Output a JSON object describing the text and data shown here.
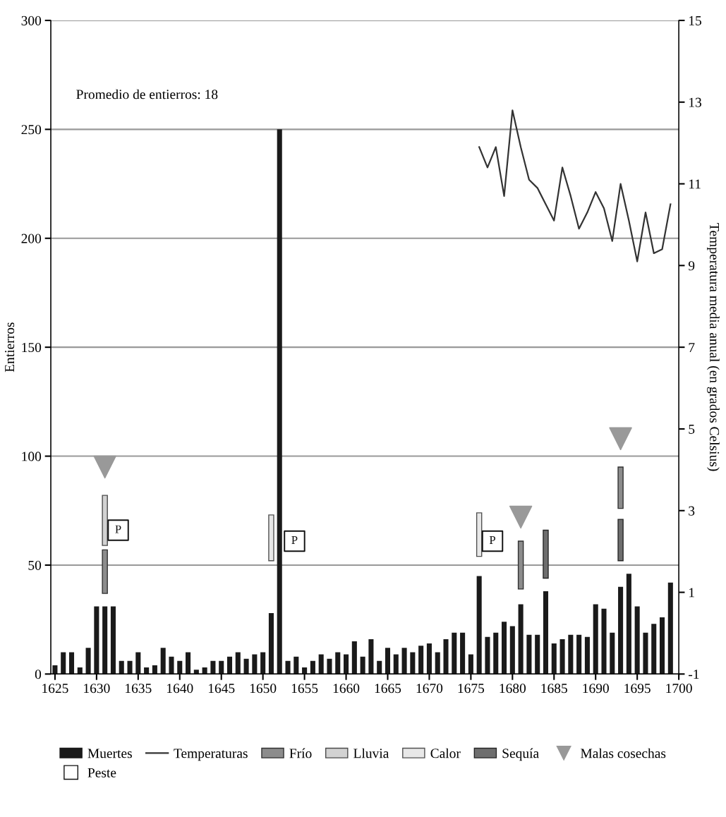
{
  "chart_data": {
    "type": "bar",
    "xlabel": null,
    "ylabel": "Entierros",
    "y2label": "Temperatura media anual (en grados Celsius)",
    "x": [
      1625,
      1626,
      1627,
      1628,
      1629,
      1630,
      1631,
      1632,
      1633,
      1634,
      1635,
      1636,
      1637,
      1638,
      1639,
      1640,
      1641,
      1642,
      1643,
      1644,
      1645,
      1646,
      1647,
      1648,
      1649,
      1650,
      1651,
      1652,
      1653,
      1654,
      1655,
      1656,
      1657,
      1658,
      1659,
      1660,
      1661,
      1662,
      1663,
      1664,
      1665,
      1666,
      1667,
      1668,
      1669,
      1670,
      1671,
      1672,
      1673,
      1674,
      1675,
      1676,
      1677,
      1678,
      1679,
      1680,
      1681,
      1682,
      1683,
      1684,
      1685,
      1686,
      1687,
      1688,
      1689,
      1690,
      1691,
      1692,
      1693,
      1694,
      1695,
      1696,
      1697,
      1698,
      1699
    ],
    "series": [
      {
        "name": "Muertes",
        "color": "#1a1a1a",
        "values": [
          4,
          10,
          10,
          3,
          12,
          31,
          31,
          31,
          6,
          6,
          10,
          3,
          4,
          12,
          8,
          6,
          10,
          2,
          3,
          6,
          6,
          8,
          10,
          7,
          9,
          10,
          28,
          250,
          6,
          8,
          3,
          6,
          9,
          7,
          10,
          9,
          15,
          8,
          16,
          6,
          12,
          9,
          12,
          10,
          13,
          14,
          10,
          16,
          19,
          19,
          9,
          45,
          17,
          19,
          24,
          22,
          32,
          18,
          18,
          38,
          14,
          16,
          18,
          18,
          17,
          32,
          30,
          19,
          40,
          46,
          31,
          19,
          23,
          26,
          42
        ]
      },
      {
        "name": "Temperaturas",
        "type": "line",
        "axis": "y2",
        "color": "#333333",
        "x": [
          1676,
          1677,
          1678,
          1679,
          1680,
          1681,
          1682,
          1683,
          1684,
          1685,
          1686,
          1687,
          1688,
          1689,
          1690,
          1691,
          1692,
          1693,
          1694,
          1695,
          1696,
          1697,
          1698,
          1699
        ],
        "values": [
          11.9,
          11.4,
          11.9,
          10.7,
          12.8,
          11.9,
          11.1,
          10.9,
          10.5,
          10.1,
          11.4,
          10.7,
          9.9,
          10.3,
          10.8,
          10.4,
          9.6,
          11.0,
          10.1,
          9.1,
          10.3,
          9.3,
          9.4,
          10.5
        ]
      },
      {
        "name": "Frío",
        "type": "bar",
        "color": "#8c8c8c",
        "x": [
          1631,
          1681,
          1693
        ],
        "base": [
          37,
          39,
          76
        ],
        "values": [
          20,
          22,
          19
        ]
      },
      {
        "name": "Lluvia",
        "type": "bar",
        "color": "#d2d2d2",
        "x": [
          1631
        ],
        "base": [
          59
        ],
        "values": [
          23
        ]
      },
      {
        "name": "Calor",
        "type": "bar",
        "color": "#e8e8e8",
        "x": [
          1651,
          1676
        ],
        "base": [
          52,
          54
        ],
        "values": [
          21,
          20
        ]
      },
      {
        "name": "Sequía",
        "type": "bar",
        "color": "#6e6e6e",
        "x": [
          1684,
          1693
        ],
        "base": [
          44,
          52
        ],
        "values": [
          22,
          19
        ]
      },
      {
        "name": "Malas cosechas",
        "type": "scatter",
        "marker": "triangle",
        "color": "#999999",
        "x": [
          1631,
          1681,
          1693
        ],
        "values": [
          95,
          72,
          108
        ]
      },
      {
        "name": "Peste",
        "type": "scatter",
        "marker": "square",
        "color": "#111111",
        "x": [
          1632.6,
          1653.8,
          1677.6
        ],
        "values": [
          66,
          61,
          61
        ],
        "value_labels": [
          "P",
          "P",
          "P"
        ]
      }
    ],
    "xlim": [
      1624.5,
      1700
    ],
    "xticks": [
      1625,
      1630,
      1635,
      1640,
      1645,
      1650,
      1655,
      1660,
      1665,
      1670,
      1675,
      1680,
      1685,
      1690,
      1695,
      1700
    ],
    "ylim": [
      0,
      300
    ],
    "yticks": [
      0,
      50,
      100,
      150,
      200,
      250,
      300
    ],
    "y2lim": [
      -1,
      15
    ],
    "y2ticks": [
      -1,
      1,
      3,
      5,
      7,
      9,
      11,
      13,
      15
    ],
    "grid": "y",
    "legend": "bottom",
    "annotations": [
      "Promedio de entierros: 18"
    ]
  }
}
